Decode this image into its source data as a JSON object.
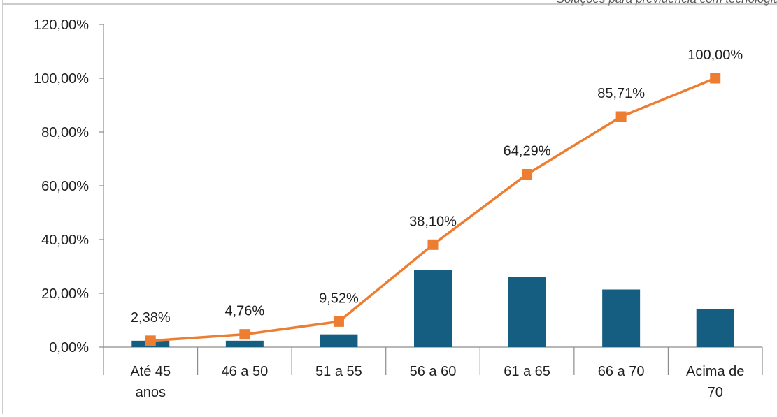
{
  "header_text": "Soluções para previdência com tecnologia",
  "chart_data": {
    "type": "bar+line",
    "categories": [
      [
        "Até 45",
        "anos"
      ],
      [
        "46 a 50"
      ],
      [
        "51 a 55"
      ],
      [
        "56 a 60"
      ],
      [
        "61 a 65"
      ],
      [
        "66 a 70"
      ],
      [
        "Acima de",
        "70"
      ]
    ],
    "series": [
      {
        "type": "bar",
        "values": [
          2.38,
          2.38,
          4.76,
          28.57,
          26.19,
          21.43,
          14.29
        ],
        "color": "#155e82"
      },
      {
        "type": "line",
        "values": [
          2.38,
          4.76,
          9.52,
          38.1,
          64.29,
          85.71,
          100.0
        ],
        "labels": [
          "2,38%",
          "4,76%",
          "9,52%",
          "38,10%",
          "64,29%",
          "85,71%",
          "100,00%"
        ],
        "color": "#ed7d31",
        "marker": "square"
      }
    ],
    "y_ticks": [
      "0,00%",
      "20,00%",
      "40,00%",
      "60,00%",
      "80,00%",
      "100,00%",
      "120,00%"
    ],
    "ylim": [
      0,
      120
    ],
    "grid": false,
    "legend": "none",
    "title": "",
    "xlabel": "",
    "ylabel": ""
  }
}
